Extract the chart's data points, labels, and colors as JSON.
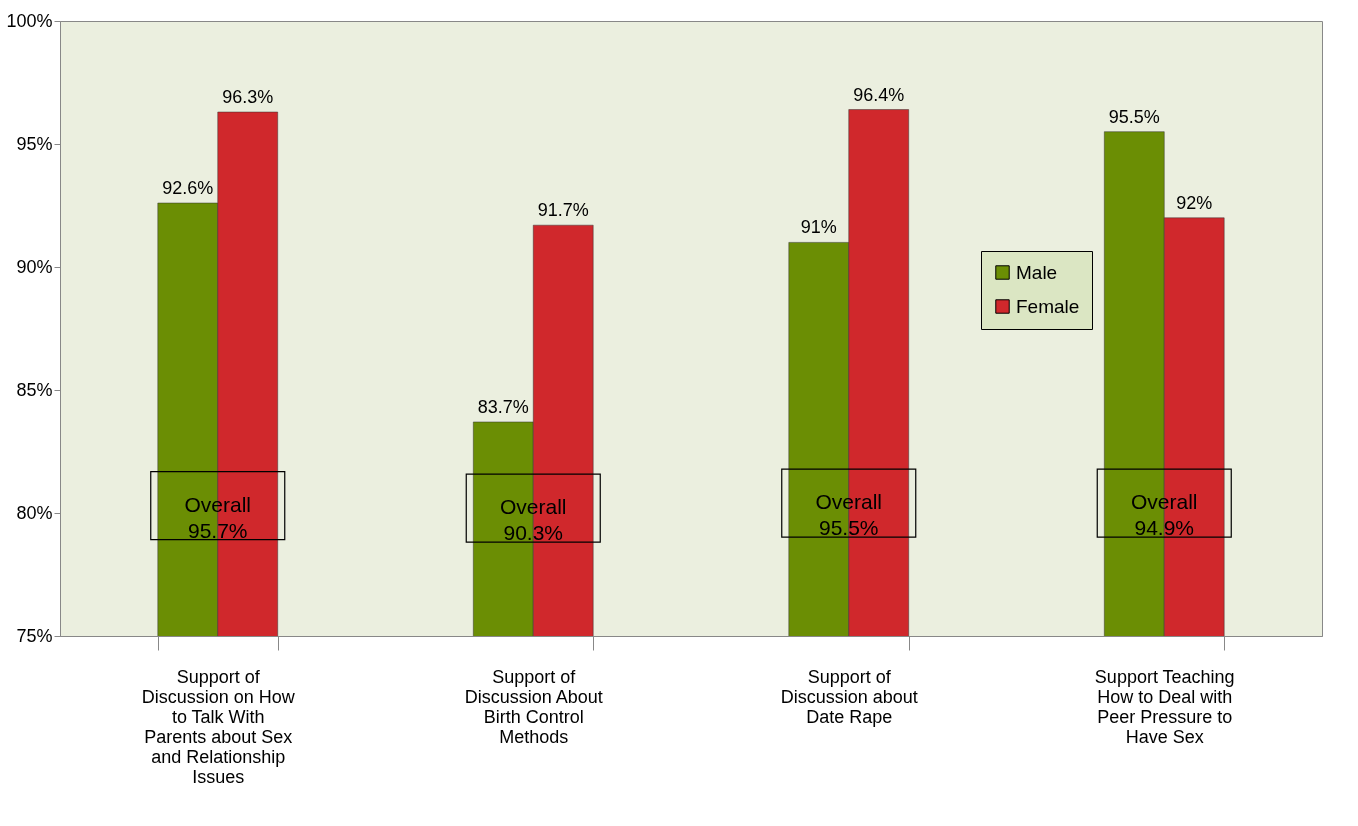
{
  "chart_data": {
    "type": "bar",
    "categories": [
      "Support of Discussion on How to Talk With Parents about Sex and Relationship Issues",
      "Support of Discussion About Birth Control Methods",
      "Support of Discussion about Date Rape",
      "Support Teaching How to Deal with Peer Pressure to Have Sex"
    ],
    "series": [
      {
        "name": "Male",
        "color": "#6b8e04",
        "values": [
          92.6,
          83.7,
          91,
          95.5
        ],
        "value_labels": [
          "92.6%",
          "83.7%",
          "91%",
          "95.5%"
        ]
      },
      {
        "name": "Female",
        "color": "#d0282c",
        "values": [
          96.3,
          91.7,
          96.4,
          92
        ],
        "value_labels": [
          "96.3%",
          "91.7%",
          "96.4%",
          "92%"
        ]
      }
    ],
    "ylim": [
      75,
      100
    ],
    "yticks": [
      {
        "value": 75,
        "label": "75%"
      },
      {
        "value": 80,
        "label": "80%"
      },
      {
        "value": 85,
        "label": "85%"
      },
      {
        "value": 90,
        "label": "90%"
      },
      {
        "value": 95,
        "label": "95%"
      },
      {
        "value": 100,
        "label": "100%"
      }
    ],
    "annotations": [
      {
        "text": "Overall 95.7%",
        "x": "Support of Discussion on How to Talk With Parents about Sex and Relationship Issues",
        "y": 80.3
      },
      {
        "text": "Overall 90.3%",
        "x": "Support of Discussion About Birth Control Methods",
        "y": 80.2
      },
      {
        "text": "Overall 95.5%",
        "x": "Support of Discussion about Date Rape",
        "y": 80.4
      },
      {
        "text": "Overall 94.9%",
        "x": "Support Teaching How to Deal with Peer Pressure to Have Sex",
        "y": 80.4
      }
    ],
    "grid": false,
    "legend": "top right"
  }
}
